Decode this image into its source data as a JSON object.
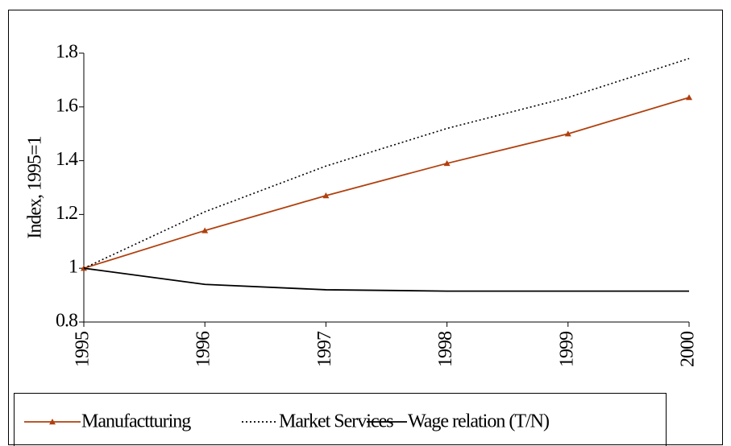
{
  "chart_data": {
    "type": "line",
    "y_label": "Index, 1995=1",
    "categories": [
      "1995",
      "1996",
      "1997",
      "1998",
      "1999",
      "2000"
    ],
    "series": [
      {
        "name": "Manufactturing",
        "color": "#b0400e",
        "line_style": "solid",
        "marker": "triangle",
        "values": [
          1,
          1.14,
          1.27,
          1.39,
          1.5,
          1.635
        ]
      },
      {
        "name": "Market Services",
        "color": "#000000",
        "line_style": "dotted",
        "marker": "none",
        "values": [
          1,
          1.21,
          1.38,
          1.52,
          1.635,
          1.78
        ]
      },
      {
        "name": "Wage relation (T/N)",
        "color": "#000000",
        "line_style": "solid",
        "marker": "none",
        "values": [
          1,
          0.94,
          0.92,
          0.915,
          0.915,
          0.915
        ]
      }
    ],
    "ylim": [
      0.8,
      1.8
    ],
    "yticks": [
      0.8,
      1,
      1.2,
      1.4,
      1.6,
      1.8
    ],
    "grid": false,
    "legend": "bottom"
  }
}
